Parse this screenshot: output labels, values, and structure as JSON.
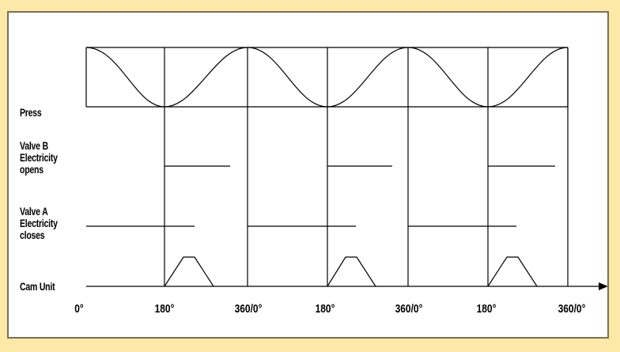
{
  "diagram": {
    "row_labels": {
      "press": "Press",
      "valve_b": [
        "Valve B",
        "Electricity",
        "opens"
      ],
      "valve_a": [
        "Valve A",
        "Electricity",
        "closes"
      ],
      "cam_unit": "Cam Unit"
    },
    "x_axis_ticks": [
      "0°",
      "180°",
      "360/0°",
      "180°",
      "360/0°",
      "180°",
      "360/0°"
    ],
    "colors": {
      "background": "#fde9a7",
      "panel": "#ffffff",
      "border": "#7a6f55",
      "line": "#000000"
    }
  }
}
